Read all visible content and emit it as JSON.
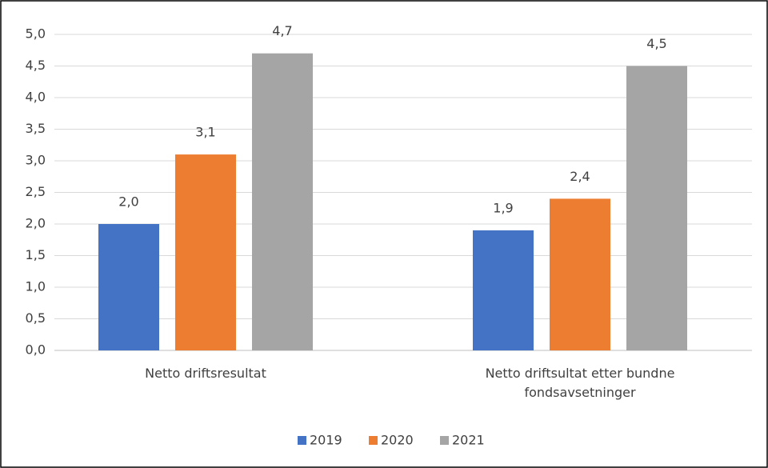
{
  "chart_data": {
    "type": "bar",
    "categories": [
      "Netto driftsresultat",
      "Netto driftsultat etter bundne fondsavsetninger"
    ],
    "series": [
      {
        "name": "2019",
        "color": "#4472c4",
        "values": [
          2.0,
          1.9
        ],
        "value_labels": [
          "2,0",
          "1,9"
        ]
      },
      {
        "name": "2020",
        "color": "#ed7d31",
        "values": [
          3.1,
          2.4
        ],
        "value_labels": [
          "3,1",
          "2,4"
        ]
      },
      {
        "name": "2021",
        "color": "#a5a5a5",
        "values": [
          4.7,
          4.5
        ],
        "value_labels": [
          "4,7",
          "4,5"
        ]
      }
    ],
    "ylim": [
      0,
      5
    ],
    "yticks": [
      {
        "value": 0,
        "label": "0,0"
      },
      {
        "value": 0.5,
        "label": "0,5"
      },
      {
        "value": 1,
        "label": "1,0"
      },
      {
        "value": 1.5,
        "label": "1,5"
      },
      {
        "value": 2,
        "label": "2,0"
      },
      {
        "value": 2.5,
        "label": "2,5"
      },
      {
        "value": 3,
        "label": "3,0"
      },
      {
        "value": 3.5,
        "label": "3,5"
      },
      {
        "value": 4,
        "label": "4,0"
      },
      {
        "value": 4.5,
        "label": "4,5"
      },
      {
        "value": 5,
        "label": "5,0"
      }
    ],
    "grid": true,
    "legend": "bottom"
  }
}
